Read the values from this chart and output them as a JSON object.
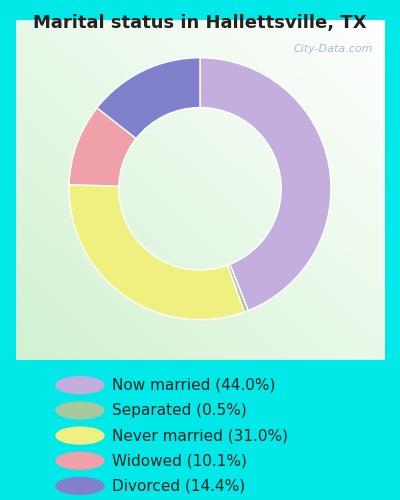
{
  "title": "Marital status in Hallettsville, TX",
  "slices": [
    44.0,
    0.5,
    31.0,
    10.1,
    14.4
  ],
  "labels": [
    "Now married (44.0%)",
    "Separated (0.5%)",
    "Never married (31.0%)",
    "Widowed (10.1%)",
    "Divorced (14.4%)"
  ],
  "colors": [
    "#c4aede",
    "#a8c8a0",
    "#f0f080",
    "#f0a0a8",
    "#8080cc"
  ],
  "legend_colors": [
    "#c4aede",
    "#a8c8a0",
    "#f0f080",
    "#f0a0a8",
    "#8080cc"
  ],
  "bg_cyan": "#00e8e8",
  "chart_bg": "#e8f5ee",
  "title_fontsize": 13,
  "legend_fontsize": 11,
  "watermark": "City-Data.com",
  "donut_width": 0.38
}
